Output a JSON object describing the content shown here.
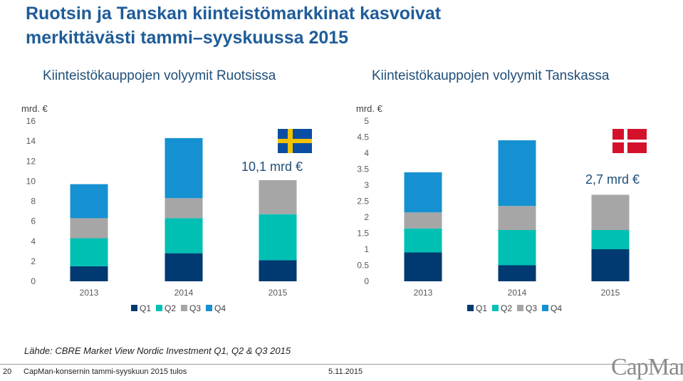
{
  "title_line1": "Ruotsin ja Tanskan kiinteistömarkkinat kasvoivat",
  "title_line2": "merkittävästi tammi–syyskuussa 2015",
  "source": "Lähde: CBRE Market View Nordic Investment Q1, Q2 & Q3 2015",
  "footer": {
    "page": "20",
    "text": "CapMan-konsernin tammi-syyskuun 2015 tulos",
    "date": "5.11.2015",
    "logo": "CapMan"
  },
  "colors": {
    "Q1": "#003a70",
    "Q2": "#00bfb3",
    "Q3": "#a6a6a6",
    "Q4": "#1591d1"
  },
  "chart_data": [
    {
      "type": "bar",
      "stacked": true,
      "title": "Kiinteistökauppojen volyymit Ruotsissa",
      "unit_label": "mrd. €",
      "annotation": "10,1 mrd €",
      "flag": "sweden-flag",
      "categories": [
        "2013",
        "2014",
        "2015"
      ],
      "ylim": [
        0,
        16
      ],
      "yticks": [
        "0",
        "2",
        "4",
        "6",
        "8",
        "10",
        "12",
        "14",
        "16"
      ],
      "series": [
        {
          "name": "Q1",
          "values": [
            1.5,
            2.8,
            2.1
          ]
        },
        {
          "name": "Q2",
          "values": [
            2.8,
            3.5,
            4.6
          ]
        },
        {
          "name": "Q3",
          "values": [
            2.0,
            2.0,
            3.4
          ]
        },
        {
          "name": "Q4",
          "values": [
            3.4,
            6.0,
            0
          ]
        }
      ],
      "legend": [
        "Q1",
        "Q2",
        "Q3",
        "Q4"
      ]
    },
    {
      "type": "bar",
      "stacked": true,
      "title": "Kiinteistökauppojen volyymit Tanskassa",
      "unit_label": "mrd. €",
      "annotation": "2,7 mrd €",
      "flag": "denmark-flag",
      "categories": [
        "2013",
        "2014",
        "2015"
      ],
      "ylim": [
        0,
        5
      ],
      "yticks": [
        "0",
        "0.5",
        "1",
        "1.5",
        "2",
        "2.5",
        "3",
        "3.5",
        "4",
        "4.5",
        "5"
      ],
      "series": [
        {
          "name": "Q1",
          "values": [
            0.9,
            0.5,
            1.0
          ]
        },
        {
          "name": "Q2",
          "values": [
            0.75,
            1.1,
            0.6
          ]
        },
        {
          "name": "Q3",
          "values": [
            0.5,
            0.75,
            1.1
          ]
        },
        {
          "name": "Q4",
          "values": [
            1.25,
            2.05,
            0
          ]
        }
      ],
      "legend": [
        "Q1",
        "Q2",
        "Q3",
        "Q4"
      ]
    }
  ]
}
